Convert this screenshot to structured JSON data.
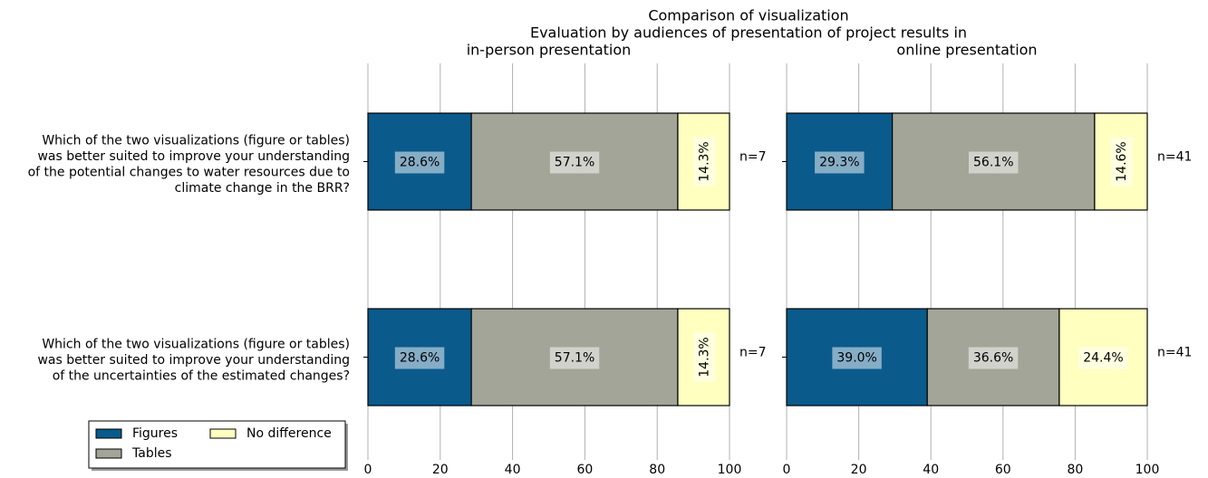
{
  "title": "Comparison of visualization",
  "subtitle": "Evaluation by audiences of presentation of project results in",
  "legend": "lower left",
  "chart_data": [
    {
      "type": "bar",
      "orientation": "horizontal",
      "stacked": true,
      "grid": true,
      "title": "in-person presentation",
      "categories": [
        [
          "Which of the two visualizations (figure or tables)",
          "was better suited to improve your understanding",
          "of the potential changes to water resources due to",
          "climate change in the BRR?"
        ],
        [
          "Which of the two visualizations (figure or tables)",
          "was better suited to improve your understanding",
          "of the uncertainties of the estimated changes?"
        ]
      ],
      "series": [
        {
          "name": "Figures",
          "color": "#0a5a8c",
          "values": [
            28.6,
            28.6
          ],
          "value_labels": [
            "28.6%",
            "28.6%"
          ]
        },
        {
          "name": "Tables",
          "color": "#a2a597",
          "values": [
            57.1,
            57.1
          ],
          "value_labels": [
            "57.1%",
            "57.1%"
          ]
        },
        {
          "name": "No difference",
          "color": "#ffffc0",
          "values": [
            14.3,
            14.3
          ],
          "value_labels": [
            "14.3%",
            "14.3%"
          ]
        }
      ],
      "annotations": [
        "n=7",
        "n=7"
      ],
      "xlim": [
        0,
        100
      ],
      "xticks": [
        0,
        20,
        40,
        60,
        80,
        100
      ]
    },
    {
      "type": "bar",
      "orientation": "horizontal",
      "stacked": true,
      "grid": true,
      "title": "online presentation",
      "series": [
        {
          "name": "Figures",
          "color": "#0a5a8c",
          "values": [
            29.3,
            39.0
          ],
          "value_labels": [
            "29.3%",
            "39.0%"
          ]
        },
        {
          "name": "Tables",
          "color": "#a2a597",
          "values": [
            56.1,
            36.6
          ],
          "value_labels": [
            "56.1%",
            "36.6%"
          ]
        },
        {
          "name": "No difference",
          "color": "#ffffc0",
          "values": [
            14.6,
            24.4
          ],
          "value_labels": [
            "14.6%",
            "24.4%"
          ]
        }
      ],
      "annotations": [
        "n=41",
        "n=41"
      ],
      "xlim": [
        0,
        100
      ],
      "xticks": [
        0,
        20,
        40,
        60,
        80,
        100
      ]
    }
  ]
}
